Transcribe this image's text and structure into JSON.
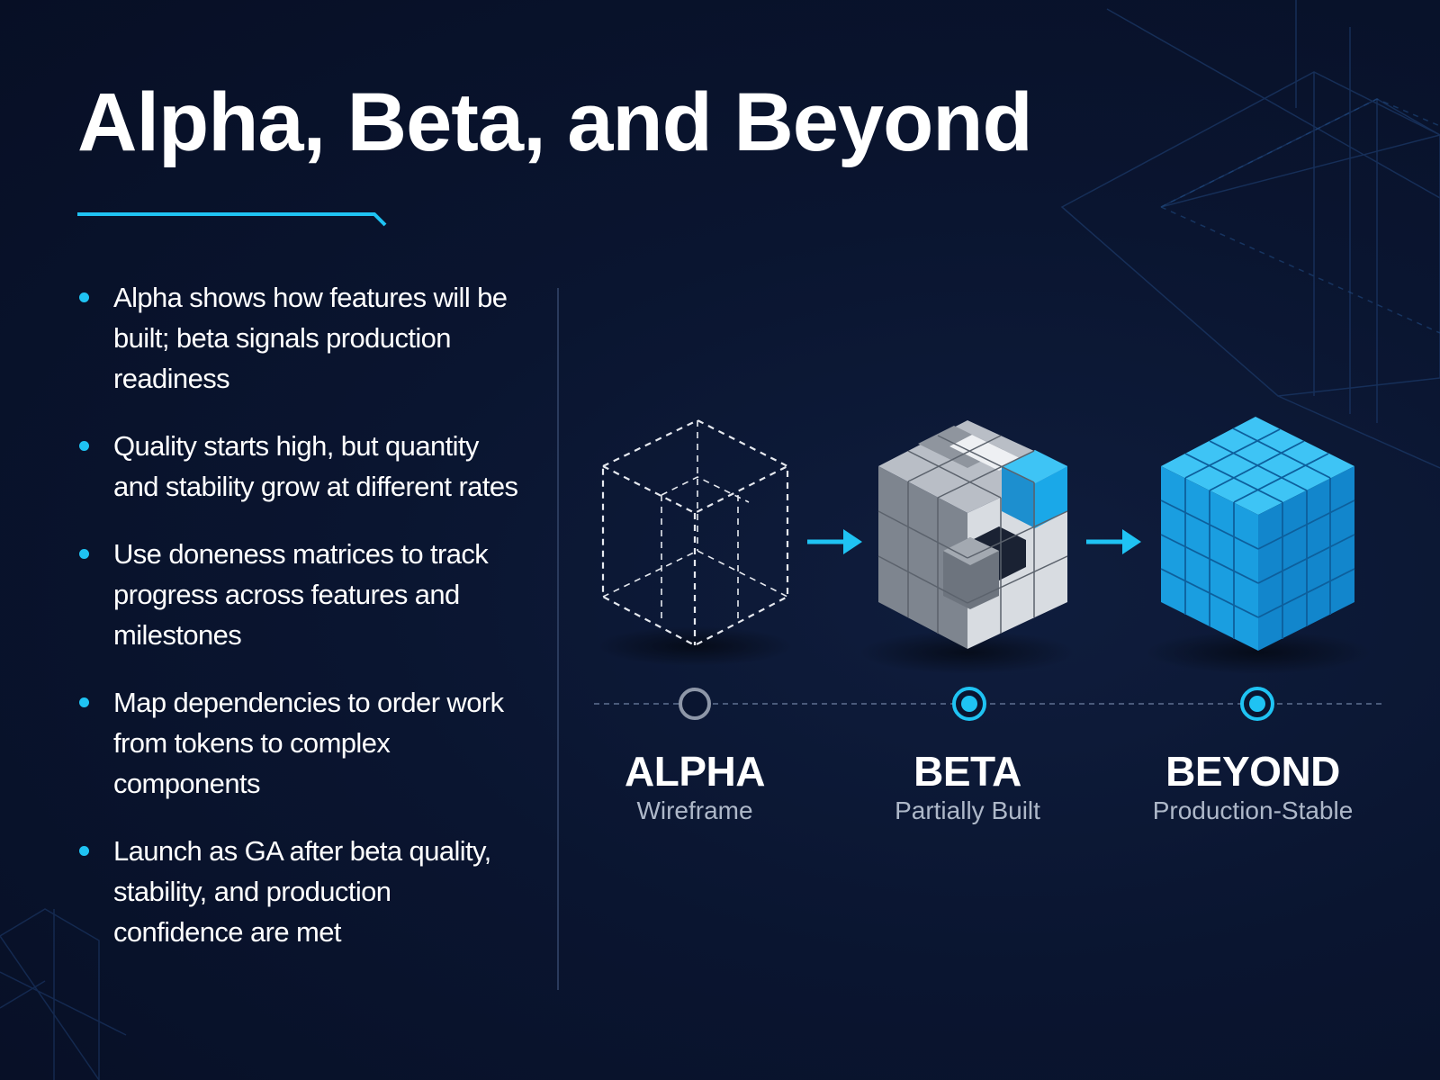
{
  "title": "Alpha, Beta, and Beyond",
  "colors": {
    "background": "#0a1530",
    "accent": "#1fc3f3",
    "cube_blue": "#1aa8e8"
  },
  "bullets": [
    "Alpha shows how features will be built; beta signals production readiness",
    "Quality starts high, but quantity and stability grow at different rates",
    "Use doneness matrices to track progress across features and milestones",
    "Map dependencies to order work from tokens to complex components",
    "Launch as GA after beta quality, stability, and production confidence are met"
  ],
  "stages": [
    {
      "label": "ALPHA",
      "sublabel": "Wireframe",
      "icon": "wireframe-cube-icon",
      "marker": "hollow"
    },
    {
      "label": "BETA",
      "sublabel": "Partially Built",
      "icon": "partial-cube-icon",
      "marker": "active"
    },
    {
      "label": "BEYOND",
      "sublabel": "Production-Stable",
      "icon": "solid-cube-icon",
      "marker": "active"
    }
  ]
}
